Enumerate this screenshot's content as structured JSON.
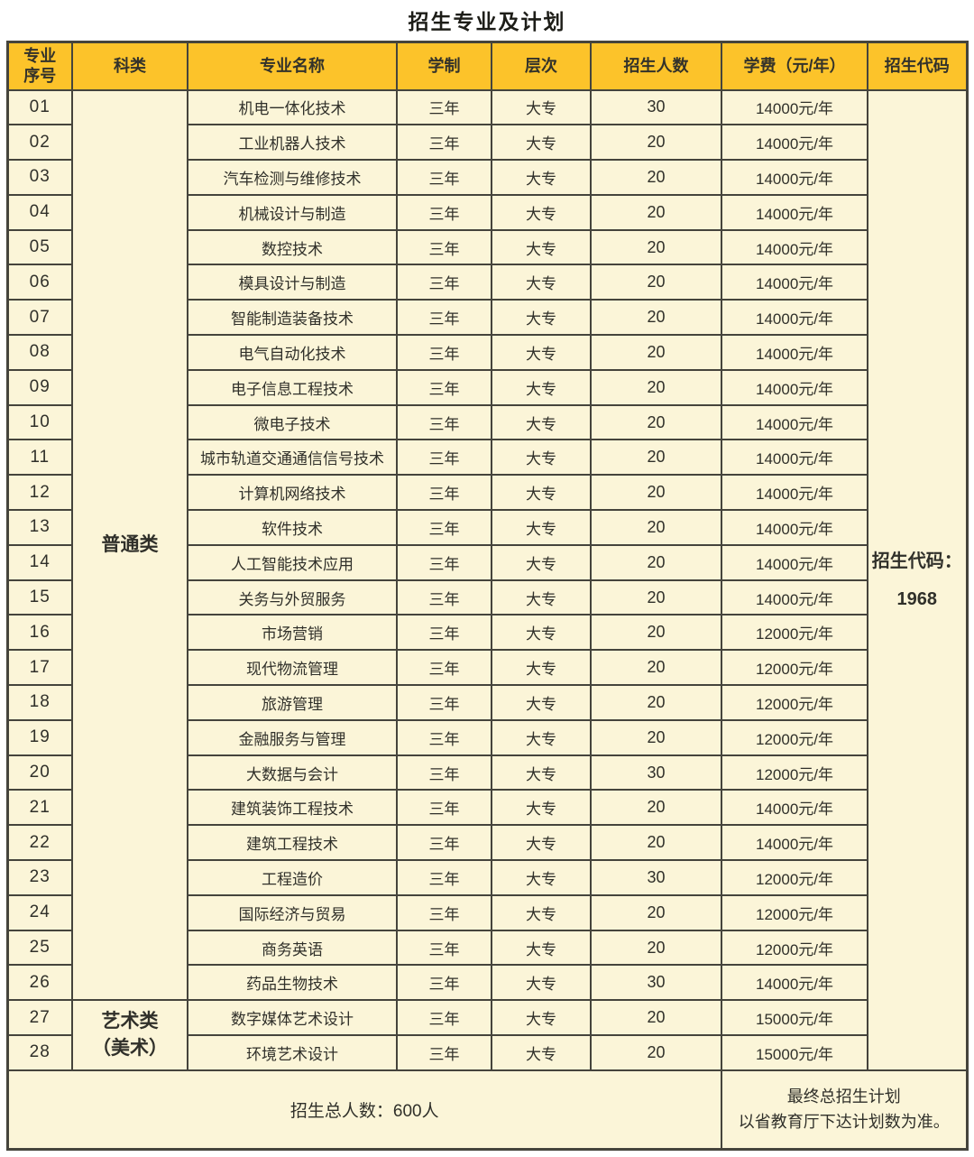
{
  "page": {
    "title": "招生专业及计划"
  },
  "colors": {
    "header_bg": "#fcc32a",
    "cell_bg": "#fbf5d8",
    "border": "#45443c",
    "text": "#30302a"
  },
  "table": {
    "headers": {
      "no": "专业\n序号",
      "category": "科类",
      "major": "专业名称",
      "duration": "学制",
      "level": "层次",
      "count": "招生人数",
      "fee": "学费（元/年）",
      "code": "招生代码"
    },
    "category_groups": [
      {
        "label": "普通类",
        "rowspan": 26
      },
      {
        "label": "艺术类\n（美术）",
        "rowspan": 2
      }
    ],
    "code_cell": {
      "text": "招生代码：\n1968",
      "rowspan": 28
    },
    "rows": [
      {
        "no": "01",
        "major": "机电一体化技术",
        "duration": "三年",
        "level": "大专",
        "count": "30",
        "fee": "14000元/年"
      },
      {
        "no": "02",
        "major": "工业机器人技术",
        "duration": "三年",
        "level": "大专",
        "count": "20",
        "fee": "14000元/年"
      },
      {
        "no": "03",
        "major": "汽车检测与维修技术",
        "duration": "三年",
        "level": "大专",
        "count": "20",
        "fee": "14000元/年"
      },
      {
        "no": "04",
        "major": "机械设计与制造",
        "duration": "三年",
        "level": "大专",
        "count": "20",
        "fee": "14000元/年"
      },
      {
        "no": "05",
        "major": "数控技术",
        "duration": "三年",
        "level": "大专",
        "count": "20",
        "fee": "14000元/年"
      },
      {
        "no": "06",
        "major": "模具设计与制造",
        "duration": "三年",
        "level": "大专",
        "count": "20",
        "fee": "14000元/年"
      },
      {
        "no": "07",
        "major": "智能制造装备技术",
        "duration": "三年",
        "level": "大专",
        "count": "20",
        "fee": "14000元/年"
      },
      {
        "no": "08",
        "major": "电气自动化技术",
        "duration": "三年",
        "level": "大专",
        "count": "20",
        "fee": "14000元/年"
      },
      {
        "no": "09",
        "major": "电子信息工程技术",
        "duration": "三年",
        "level": "大专",
        "count": "20",
        "fee": "14000元/年"
      },
      {
        "no": "10",
        "major": "微电子技术",
        "duration": "三年",
        "level": "大专",
        "count": "20",
        "fee": "14000元/年"
      },
      {
        "no": "11",
        "major": "城市轨道交通通信信号技术",
        "duration": "三年",
        "level": "大专",
        "count": "20",
        "fee": "14000元/年"
      },
      {
        "no": "12",
        "major": "计算机网络技术",
        "duration": "三年",
        "level": "大专",
        "count": "20",
        "fee": "14000元/年"
      },
      {
        "no": "13",
        "major": "软件技术",
        "duration": "三年",
        "level": "大专",
        "count": "20",
        "fee": "14000元/年"
      },
      {
        "no": "14",
        "major": "人工智能技术应用",
        "duration": "三年",
        "level": "大专",
        "count": "20",
        "fee": "14000元/年"
      },
      {
        "no": "15",
        "major": "关务与外贸服务",
        "duration": "三年",
        "level": "大专",
        "count": "20",
        "fee": "14000元/年"
      },
      {
        "no": "16",
        "major": "市场营销",
        "duration": "三年",
        "level": "大专",
        "count": "20",
        "fee": "12000元/年"
      },
      {
        "no": "17",
        "major": "现代物流管理",
        "duration": "三年",
        "level": "大专",
        "count": "20",
        "fee": "12000元/年"
      },
      {
        "no": "18",
        "major": "旅游管理",
        "duration": "三年",
        "level": "大专",
        "count": "20",
        "fee": "12000元/年"
      },
      {
        "no": "19",
        "major": "金融服务与管理",
        "duration": "三年",
        "level": "大专",
        "count": "20",
        "fee": "12000元/年"
      },
      {
        "no": "20",
        "major": "大数据与会计",
        "duration": "三年",
        "level": "大专",
        "count": "30",
        "fee": "12000元/年"
      },
      {
        "no": "21",
        "major": "建筑装饰工程技术",
        "duration": "三年",
        "level": "大专",
        "count": "20",
        "fee": "14000元/年"
      },
      {
        "no": "22",
        "major": "建筑工程技术",
        "duration": "三年",
        "level": "大专",
        "count": "20",
        "fee": "14000元/年"
      },
      {
        "no": "23",
        "major": "工程造价",
        "duration": "三年",
        "level": "大专",
        "count": "30",
        "fee": "12000元/年"
      },
      {
        "no": "24",
        "major": "国际经济与贸易",
        "duration": "三年",
        "level": "大专",
        "count": "20",
        "fee": "12000元/年"
      },
      {
        "no": "25",
        "major": "商务英语",
        "duration": "三年",
        "level": "大专",
        "count": "20",
        "fee": "12000元/年"
      },
      {
        "no": "26",
        "major": "药品生物技术",
        "duration": "三年",
        "level": "大专",
        "count": "30",
        "fee": "14000元/年"
      },
      {
        "no": "27",
        "major": "数字媒体艺术设计",
        "duration": "三年",
        "level": "大专",
        "count": "20",
        "fee": "15000元/年"
      },
      {
        "no": "28",
        "major": "环境艺术设计",
        "duration": "三年",
        "level": "大专",
        "count": "20",
        "fee": "15000元/年"
      }
    ],
    "footer": {
      "total": "招生总人数：600人",
      "note": "最终总招生计划\n以省教育厅下达计划数为准。"
    }
  }
}
